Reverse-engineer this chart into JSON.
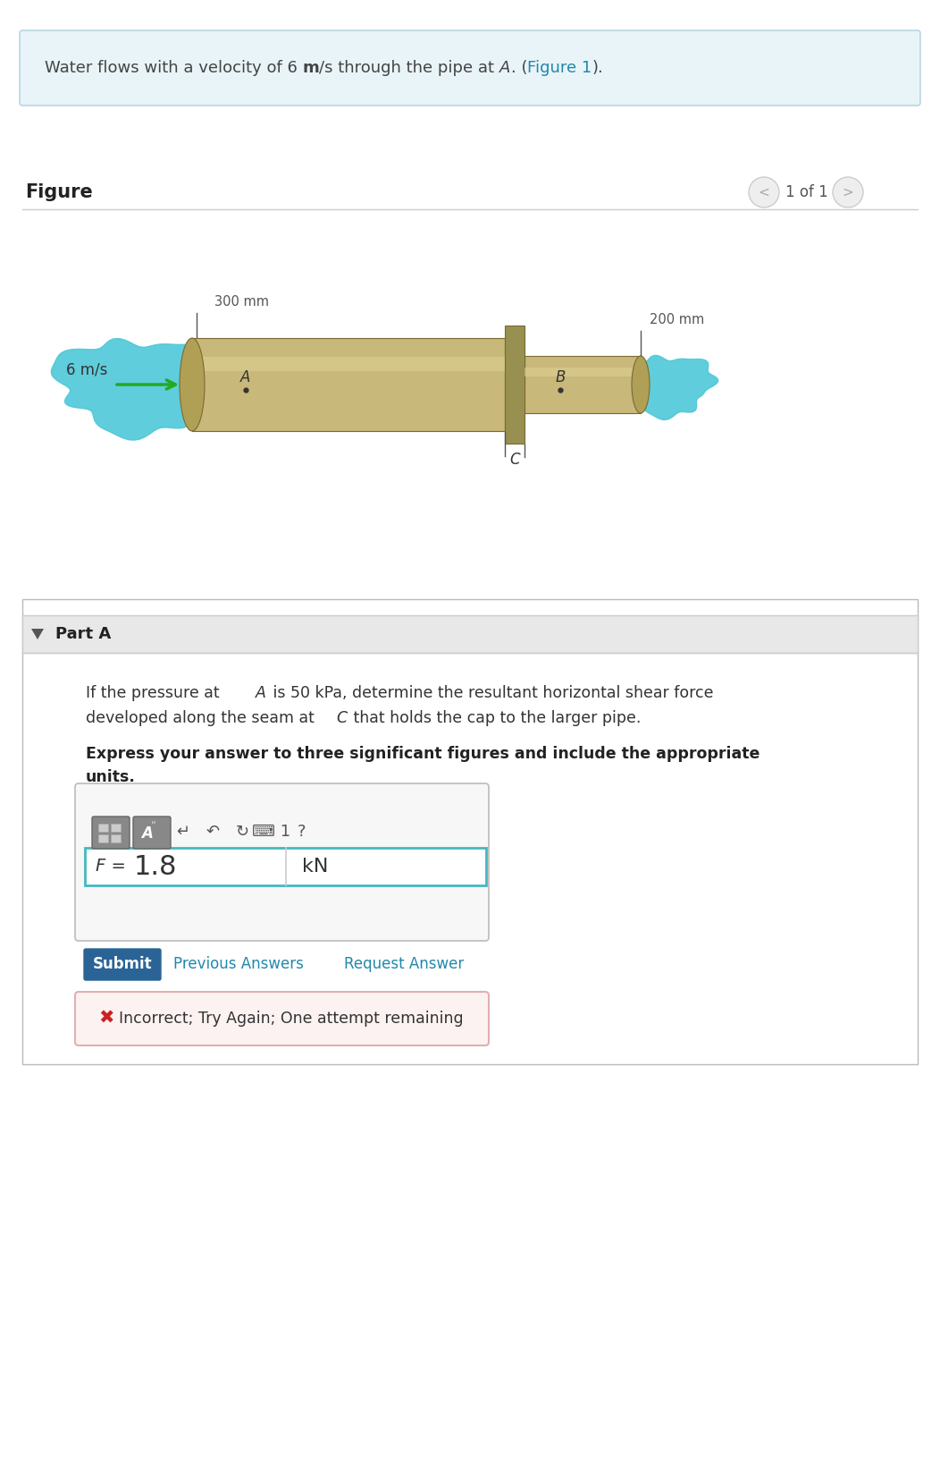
{
  "bg_color": "#ffffff",
  "header_bg": "#e8f4f8",
  "header_border": "#b0d0dc",
  "figure_label": "Figure",
  "nav_text": "1 of 1",
  "velocity_label": "6 m/s",
  "dim_300": "300 mm",
  "dim_200": "200 mm",
  "label_A": "A",
  "label_B": "B",
  "label_C": "C",
  "part_label": "Part A",
  "answer_value": "1.8",
  "answer_unit": "kN",
  "submit_text": "Submit",
  "prev_text": "Previous Answers",
  "req_text": "Request Answer",
  "incorrect_text": "Incorrect; Try Again; One attempt remaining",
  "pipe_color_light": "#c8b87a",
  "pipe_color_dark": "#7a6a30",
  "pipe_color_mid": "#b0a055",
  "pipe_color_highlight": "#ddd090",
  "pipe_color_shadow": "#90802a",
  "water_color": "#4ec8d8",
  "connector_color": "#989050",
  "arrow_color": "#22aa22",
  "link_color": "#2288aa",
  "border_color": "#cccccc",
  "submit_bg": "#2a6496",
  "part_bg": "#e8e8e8",
  "text_dark": "#222222",
  "text_mid": "#444444",
  "text_light": "#555555"
}
